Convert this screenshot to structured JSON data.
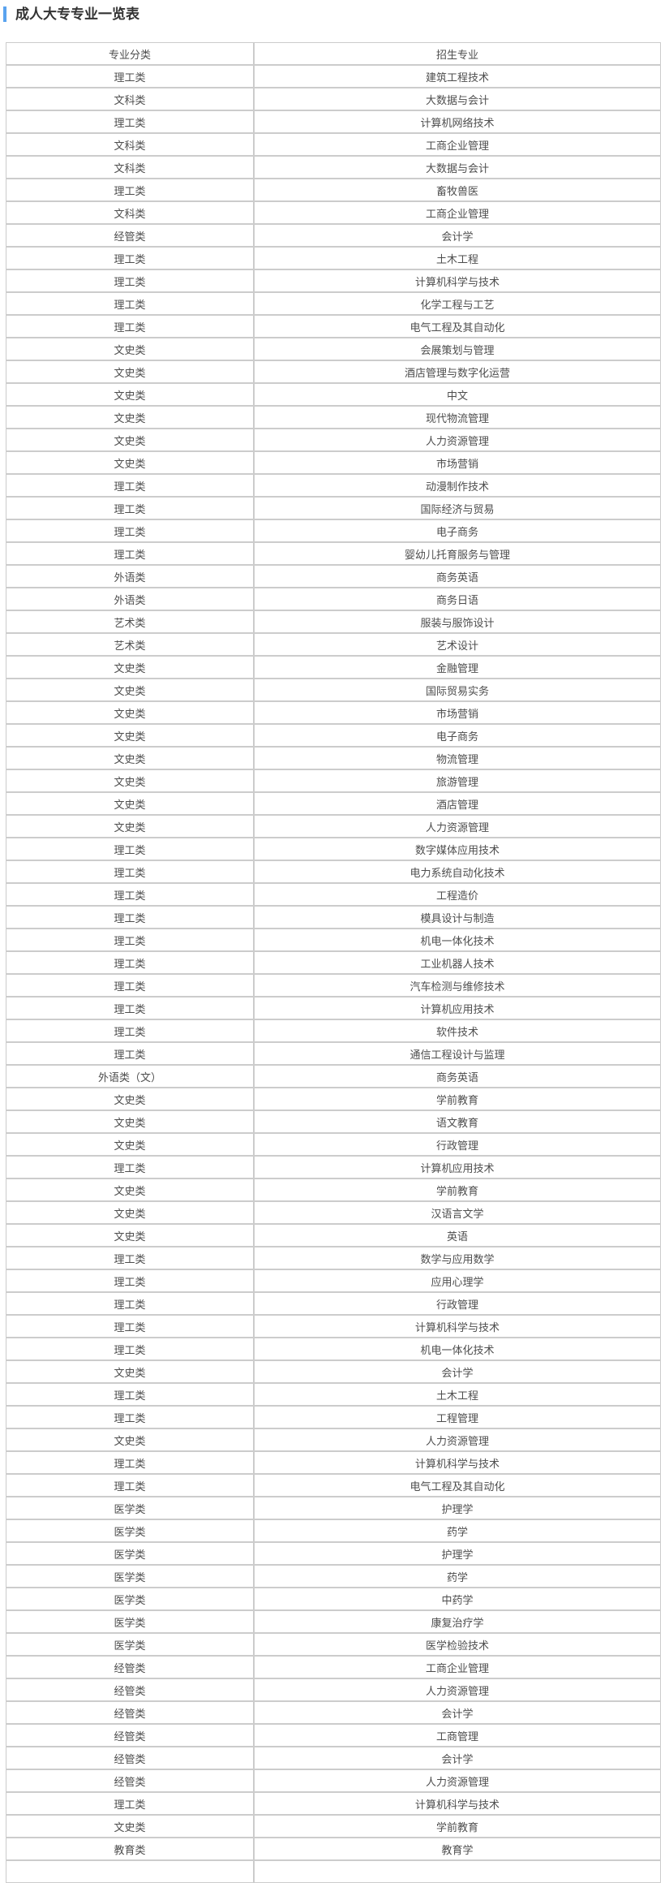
{
  "page": {
    "title": "成人大专专业一览表",
    "accent_color": "#5aa3ef"
  },
  "table": {
    "headers": [
      "专业分类",
      "招生专业"
    ],
    "rows": [
      [
        "理工类",
        "建筑工程技术"
      ],
      [
        "文科类",
        "大数据与会计"
      ],
      [
        "理工类",
        "计算机网络技术"
      ],
      [
        "文科类",
        "工商企业管理"
      ],
      [
        "文科类",
        "大数据与会计"
      ],
      [
        "理工类",
        "畜牧兽医"
      ],
      [
        "文科类",
        "工商企业管理"
      ],
      [
        "经管类",
        "会计学"
      ],
      [
        "理工类",
        "土木工程"
      ],
      [
        "理工类",
        "计算机科学与技术"
      ],
      [
        "理工类",
        "化学工程与工艺"
      ],
      [
        "理工类",
        "电气工程及其自动化"
      ],
      [
        "文史类",
        "会展策划与管理"
      ],
      [
        "文史类",
        "酒店管理与数字化运营"
      ],
      [
        "文史类",
        "中文"
      ],
      [
        "文史类",
        "现代物流管理"
      ],
      [
        "文史类",
        "人力资源管理"
      ],
      [
        "文史类",
        "市场营销"
      ],
      [
        "理工类",
        "动漫制作技术"
      ],
      [
        "理工类",
        "国际经济与贸易"
      ],
      [
        "理工类",
        "电子商务"
      ],
      [
        "理工类",
        "婴幼儿托育服务与管理"
      ],
      [
        "外语类",
        "商务英语"
      ],
      [
        "外语类",
        "商务日语"
      ],
      [
        "艺术类",
        "服装与服饰设计"
      ],
      [
        "艺术类",
        "艺术设计"
      ],
      [
        "文史类",
        "金融管理"
      ],
      [
        "文史类",
        "国际贸易实务"
      ],
      [
        "文史类",
        "市场营销"
      ],
      [
        "文史类",
        "电子商务"
      ],
      [
        "文史类",
        "物流管理"
      ],
      [
        "文史类",
        "旅游管理"
      ],
      [
        "文史类",
        "酒店管理"
      ],
      [
        "文史类",
        "人力资源管理"
      ],
      [
        "理工类",
        "数字媒体应用技术"
      ],
      [
        "理工类",
        "电力系统自动化技术"
      ],
      [
        "理工类",
        "工程造价"
      ],
      [
        "理工类",
        "模具设计与制造"
      ],
      [
        "理工类",
        "机电一体化技术"
      ],
      [
        "理工类",
        "工业机器人技术"
      ],
      [
        "理工类",
        "汽车检测与维修技术"
      ],
      [
        "理工类",
        "计算机应用技术"
      ],
      [
        "理工类",
        "软件技术"
      ],
      [
        "理工类",
        "通信工程设计与监理"
      ],
      [
        "外语类（文）",
        "商务英语"
      ],
      [
        "文史类",
        "学前教育"
      ],
      [
        "文史类",
        "语文教育"
      ],
      [
        "文史类",
        "行政管理"
      ],
      [
        "理工类",
        "计算机应用技术"
      ],
      [
        "文史类",
        "学前教育"
      ],
      [
        "文史类",
        "汉语言文学"
      ],
      [
        "文史类",
        "英语"
      ],
      [
        "理工类",
        "数学与应用数学"
      ],
      [
        "理工类",
        "应用心理学"
      ],
      [
        "理工类",
        "行政管理"
      ],
      [
        "理工类",
        "计算机科学与技术"
      ],
      [
        "理工类",
        "机电一体化技术"
      ],
      [
        "文史类",
        "会计学"
      ],
      [
        "理工类",
        "土木工程"
      ],
      [
        "理工类",
        "工程管理"
      ],
      [
        "文史类",
        "人力资源管理"
      ],
      [
        "理工类",
        "计算机科学与技术"
      ],
      [
        "理工类",
        "电气工程及其自动化"
      ],
      [
        "医学类",
        "护理学"
      ],
      [
        "医学类",
        "药学"
      ],
      [
        "医学类",
        "护理学"
      ],
      [
        "医学类",
        "药学"
      ],
      [
        "医学类",
        "中药学"
      ],
      [
        "医学类",
        "康复治疗学"
      ],
      [
        "医学类",
        "医学检验技术"
      ],
      [
        "经管类",
        "工商企业管理"
      ],
      [
        "经管类",
        "人力资源管理"
      ],
      [
        "经管类",
        "会计学"
      ],
      [
        "经管类",
        "工商管理"
      ],
      [
        "经管类",
        "会计学"
      ],
      [
        "经管类",
        "人力资源管理"
      ],
      [
        "理工类",
        "计算机科学与技术"
      ],
      [
        "文史类",
        "学前教育"
      ],
      [
        "教育类",
        "教育学"
      ]
    ]
  }
}
